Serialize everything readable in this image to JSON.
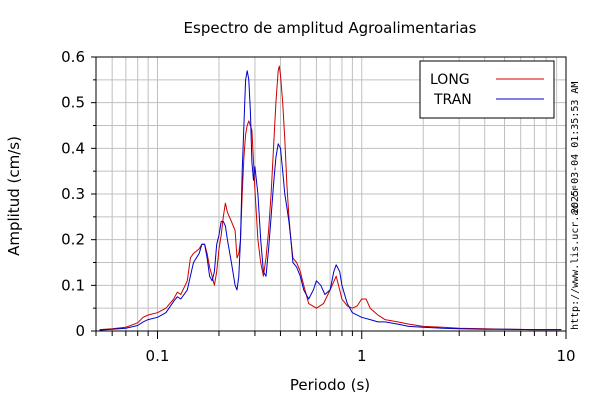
{
  "chart_data": {
    "type": "line",
    "title": "Espectro de amplitud Agroalimentarias",
    "xlabel": "Periodo (s)",
    "ylabel": "Amplitud (cm/s)",
    "x_scale": "log",
    "xlim": [
      0.05,
      10
    ],
    "ylim": [
      0,
      0.6
    ],
    "x_tick_labels": [
      {
        "value": 0.1,
        "label": "0.1"
      },
      {
        "value": 1,
        "label": "1"
      },
      {
        "value": 10,
        "label": "10"
      }
    ],
    "y_tick_labels": [
      {
        "value": 0,
        "label": "0"
      },
      {
        "value": 0.1,
        "label": "0.1"
      },
      {
        "value": 0.2,
        "label": "0.2"
      },
      {
        "value": 0.3,
        "label": "0.3"
      },
      {
        "value": 0.4,
        "label": "0.4"
      },
      {
        "value": 0.5,
        "label": "0.5"
      },
      {
        "value": 0.6,
        "label": "0.6"
      }
    ],
    "grid": true,
    "legend_position": "top-right",
    "series": [
      {
        "name": "LONG",
        "color": "#cc0000",
        "points": [
          [
            0.052,
            0.003
          ],
          [
            0.06,
            0.005
          ],
          [
            0.07,
            0.008
          ],
          [
            0.08,
            0.018
          ],
          [
            0.085,
            0.03
          ],
          [
            0.09,
            0.035
          ],
          [
            0.1,
            0.04
          ],
          [
            0.11,
            0.05
          ],
          [
            0.12,
            0.07
          ],
          [
            0.125,
            0.085
          ],
          [
            0.13,
            0.08
          ],
          [
            0.14,
            0.11
          ],
          [
            0.145,
            0.16
          ],
          [
            0.15,
            0.17
          ],
          [
            0.155,
            0.175
          ],
          [
            0.16,
            0.18
          ],
          [
            0.165,
            0.19
          ],
          [
            0.17,
            0.19
          ],
          [
            0.175,
            0.17
          ],
          [
            0.18,
            0.14
          ],
          [
            0.185,
            0.12
          ],
          [
            0.19,
            0.1
          ],
          [
            0.195,
            0.13
          ],
          [
            0.2,
            0.18
          ],
          [
            0.205,
            0.21
          ],
          [
            0.21,
            0.25
          ],
          [
            0.215,
            0.28
          ],
          [
            0.22,
            0.26
          ],
          [
            0.23,
            0.24
          ],
          [
            0.24,
            0.22
          ],
          [
            0.245,
            0.16
          ],
          [
            0.25,
            0.17
          ],
          [
            0.255,
            0.2
          ],
          [
            0.26,
            0.3
          ],
          [
            0.265,
            0.38
          ],
          [
            0.27,
            0.43
          ],
          [
            0.275,
            0.45
          ],
          [
            0.28,
            0.46
          ],
          [
            0.29,
            0.44
          ],
          [
            0.3,
            0.31
          ],
          [
            0.31,
            0.2
          ],
          [
            0.32,
            0.15
          ],
          [
            0.33,
            0.12
          ],
          [
            0.34,
            0.16
          ],
          [
            0.35,
            0.22
          ],
          [
            0.36,
            0.3
          ],
          [
            0.37,
            0.4
          ],
          [
            0.38,
            0.5
          ],
          [
            0.39,
            0.57
          ],
          [
            0.395,
            0.58
          ],
          [
            0.4,
            0.56
          ],
          [
            0.41,
            0.5
          ],
          [
            0.42,
            0.42
          ],
          [
            0.43,
            0.32
          ],
          [
            0.44,
            0.25
          ],
          [
            0.45,
            0.2
          ],
          [
            0.46,
            0.16
          ],
          [
            0.48,
            0.15
          ],
          [
            0.5,
            0.13
          ],
          [
            0.52,
            0.1
          ],
          [
            0.55,
            0.06
          ],
          [
            0.6,
            0.05
          ],
          [
            0.65,
            0.06
          ],
          [
            0.7,
            0.09
          ],
          [
            0.75,
            0.12
          ],
          [
            0.78,
            0.09
          ],
          [
            0.8,
            0.07
          ],
          [
            0.85,
            0.055
          ],
          [
            0.9,
            0.05
          ],
          [
            0.95,
            0.055
          ],
          [
            1.0,
            0.07
          ],
          [
            1.05,
            0.07
          ],
          [
            1.1,
            0.05
          ],
          [
            1.2,
            0.035
          ],
          [
            1.3,
            0.025
          ],
          [
            1.5,
            0.02
          ],
          [
            1.7,
            0.015
          ],
          [
            2.0,
            0.01
          ],
          [
            2.5,
            0.008
          ],
          [
            3.0,
            0.006
          ],
          [
            4.0,
            0.005
          ],
          [
            5.0,
            0.004
          ],
          [
            7.0,
            0.003
          ],
          [
            9.5,
            0.003
          ]
        ]
      },
      {
        "name": "TRAN",
        "color": "#0000cc",
        "points": [
          [
            0.052,
            0.002
          ],
          [
            0.06,
            0.004
          ],
          [
            0.07,
            0.006
          ],
          [
            0.08,
            0.012
          ],
          [
            0.085,
            0.02
          ],
          [
            0.09,
            0.025
          ],
          [
            0.1,
            0.03
          ],
          [
            0.11,
            0.04
          ],
          [
            0.12,
            0.065
          ],
          [
            0.125,
            0.075
          ],
          [
            0.13,
            0.07
          ],
          [
            0.14,
            0.09
          ],
          [
            0.145,
            0.12
          ],
          [
            0.15,
            0.15
          ],
          [
            0.155,
            0.16
          ],
          [
            0.16,
            0.17
          ],
          [
            0.165,
            0.19
          ],
          [
            0.17,
            0.19
          ],
          [
            0.175,
            0.16
          ],
          [
            0.18,
            0.12
          ],
          [
            0.185,
            0.11
          ],
          [
            0.19,
            0.13
          ],
          [
            0.195,
            0.19
          ],
          [
            0.2,
            0.21
          ],
          [
            0.205,
            0.24
          ],
          [
            0.21,
            0.24
          ],
          [
            0.215,
            0.23
          ],
          [
            0.22,
            0.2
          ],
          [
            0.23,
            0.15
          ],
          [
            0.24,
            0.1
          ],
          [
            0.245,
            0.09
          ],
          [
            0.25,
            0.12
          ],
          [
            0.255,
            0.2
          ],
          [
            0.26,
            0.35
          ],
          [
            0.265,
            0.45
          ],
          [
            0.27,
            0.55
          ],
          [
            0.275,
            0.57
          ],
          [
            0.28,
            0.55
          ],
          [
            0.285,
            0.48
          ],
          [
            0.29,
            0.37
          ],
          [
            0.295,
            0.33
          ],
          [
            0.3,
            0.36
          ],
          [
            0.31,
            0.3
          ],
          [
            0.32,
            0.2
          ],
          [
            0.33,
            0.13
          ],
          [
            0.34,
            0.12
          ],
          [
            0.35,
            0.18
          ],
          [
            0.36,
            0.25
          ],
          [
            0.37,
            0.32
          ],
          [
            0.38,
            0.38
          ],
          [
            0.39,
            0.41
          ],
          [
            0.4,
            0.4
          ],
          [
            0.41,
            0.35
          ],
          [
            0.42,
            0.3
          ],
          [
            0.43,
            0.27
          ],
          [
            0.44,
            0.24
          ],
          [
            0.45,
            0.2
          ],
          [
            0.46,
            0.15
          ],
          [
            0.48,
            0.14
          ],
          [
            0.5,
            0.12
          ],
          [
            0.52,
            0.09
          ],
          [
            0.55,
            0.07
          ],
          [
            0.58,
            0.09
          ],
          [
            0.6,
            0.11
          ],
          [
            0.63,
            0.1
          ],
          [
            0.66,
            0.08
          ],
          [
            0.7,
            0.09
          ],
          [
            0.73,
            0.13
          ],
          [
            0.75,
            0.145
          ],
          [
            0.78,
            0.13
          ],
          [
            0.8,
            0.1
          ],
          [
            0.85,
            0.06
          ],
          [
            0.9,
            0.04
          ],
          [
            1.0,
            0.03
          ],
          [
            1.1,
            0.025
          ],
          [
            1.2,
            0.02
          ],
          [
            1.3,
            0.02
          ],
          [
            1.5,
            0.015
          ],
          [
            1.7,
            0.01
          ],
          [
            2.0,
            0.008
          ],
          [
            2.5,
            0.006
          ],
          [
            3.0,
            0.005
          ],
          [
            4.0,
            0.004
          ],
          [
            5.0,
            0.004
          ],
          [
            7.0,
            0.003
          ],
          [
            9.5,
            0.003
          ]
        ]
      }
    ]
  },
  "side_labels": {
    "timestamp": "2025-03-04 01:35:53 AM",
    "url": "http://www.lis.ucr.ac.cr"
  },
  "colors": {
    "grid": "#c0c0c0",
    "axis": "#000000",
    "background": "#ffffff"
  }
}
